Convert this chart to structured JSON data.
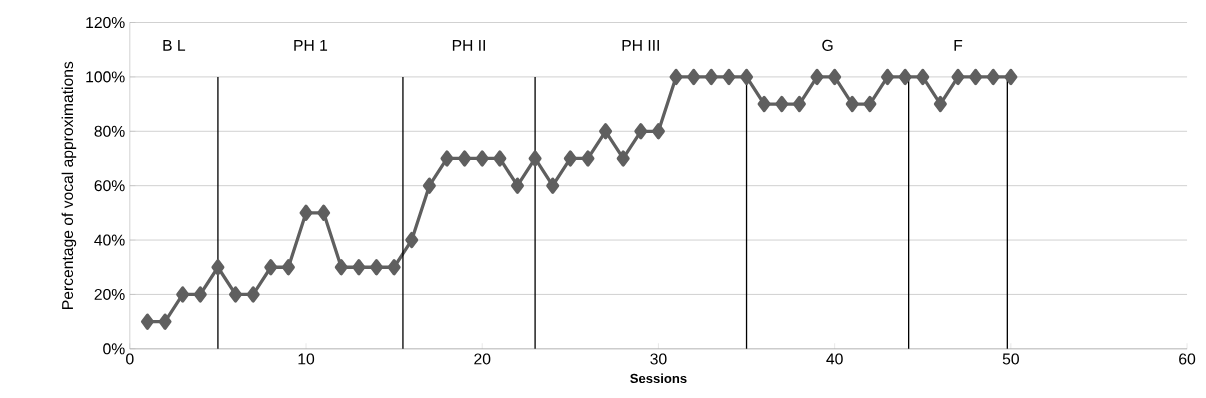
{
  "chart_data": {
    "type": "line",
    "xlabel": "Sessions",
    "ylabel": "Percentage of vocal approximations",
    "x": [
      1,
      2,
      3,
      4,
      5,
      6,
      7,
      8,
      9,
      10,
      11,
      12,
      13,
      14,
      15,
      16,
      17,
      18,
      19,
      20,
      21,
      22,
      23,
      24,
      25,
      26,
      27,
      28,
      29,
      30,
      31,
      32,
      33,
      34,
      35,
      36,
      37,
      38,
      39,
      40,
      41,
      42,
      43,
      44,
      45,
      46,
      47,
      48,
      49,
      50
    ],
    "series": [
      {
        "color": "#5f5f5f",
        "values": [
          10,
          10,
          20,
          20,
          30,
          20,
          20,
          30,
          30,
          50,
          50,
          30,
          30,
          30,
          30,
          40,
          60,
          70,
          70,
          70,
          70,
          60,
          70,
          60,
          70,
          70,
          80,
          70,
          80,
          80,
          100,
          100,
          100,
          100,
          100,
          90,
          90,
          90,
          100,
          100,
          90,
          90,
          100,
          100,
          100,
          90,
          100,
          100,
          100,
          100
        ]
      }
    ],
    "xlim": [
      0,
      60
    ],
    "xticks": [
      0,
      10,
      20,
      30,
      40,
      50,
      60
    ],
    "ylim": [
      0,
      120
    ],
    "yticks": [
      {
        "value": 0,
        "label": "0%"
      },
      {
        "value": 20,
        "label": "20%"
      },
      {
        "value": 40,
        "label": "40%"
      },
      {
        "value": 60,
        "label": "60%"
      },
      {
        "value": 80,
        "label": "80%"
      },
      {
        "value": 100,
        "label": "100%"
      },
      {
        "value": 120,
        "label": "120%"
      }
    ],
    "grid": "y",
    "marker": "diamond",
    "line_style": "solid",
    "ref_lines": [
      {
        "axis": "x",
        "value": 5,
        "color": "#000000"
      },
      {
        "axis": "x",
        "value": 15.5,
        "color": "#000000"
      },
      {
        "axis": "x",
        "value": 23,
        "color": "#000000"
      },
      {
        "axis": "x",
        "value": 35,
        "color": "#000000"
      },
      {
        "axis": "x",
        "value": 44.2,
        "color": "#000000"
      },
      {
        "axis": "x",
        "value": 49.8,
        "color": "#000000"
      }
    ],
    "annotations": [
      "B L",
      "PH 1",
      "PH II",
      "PH III",
      "G",
      "F"
    ]
  }
}
